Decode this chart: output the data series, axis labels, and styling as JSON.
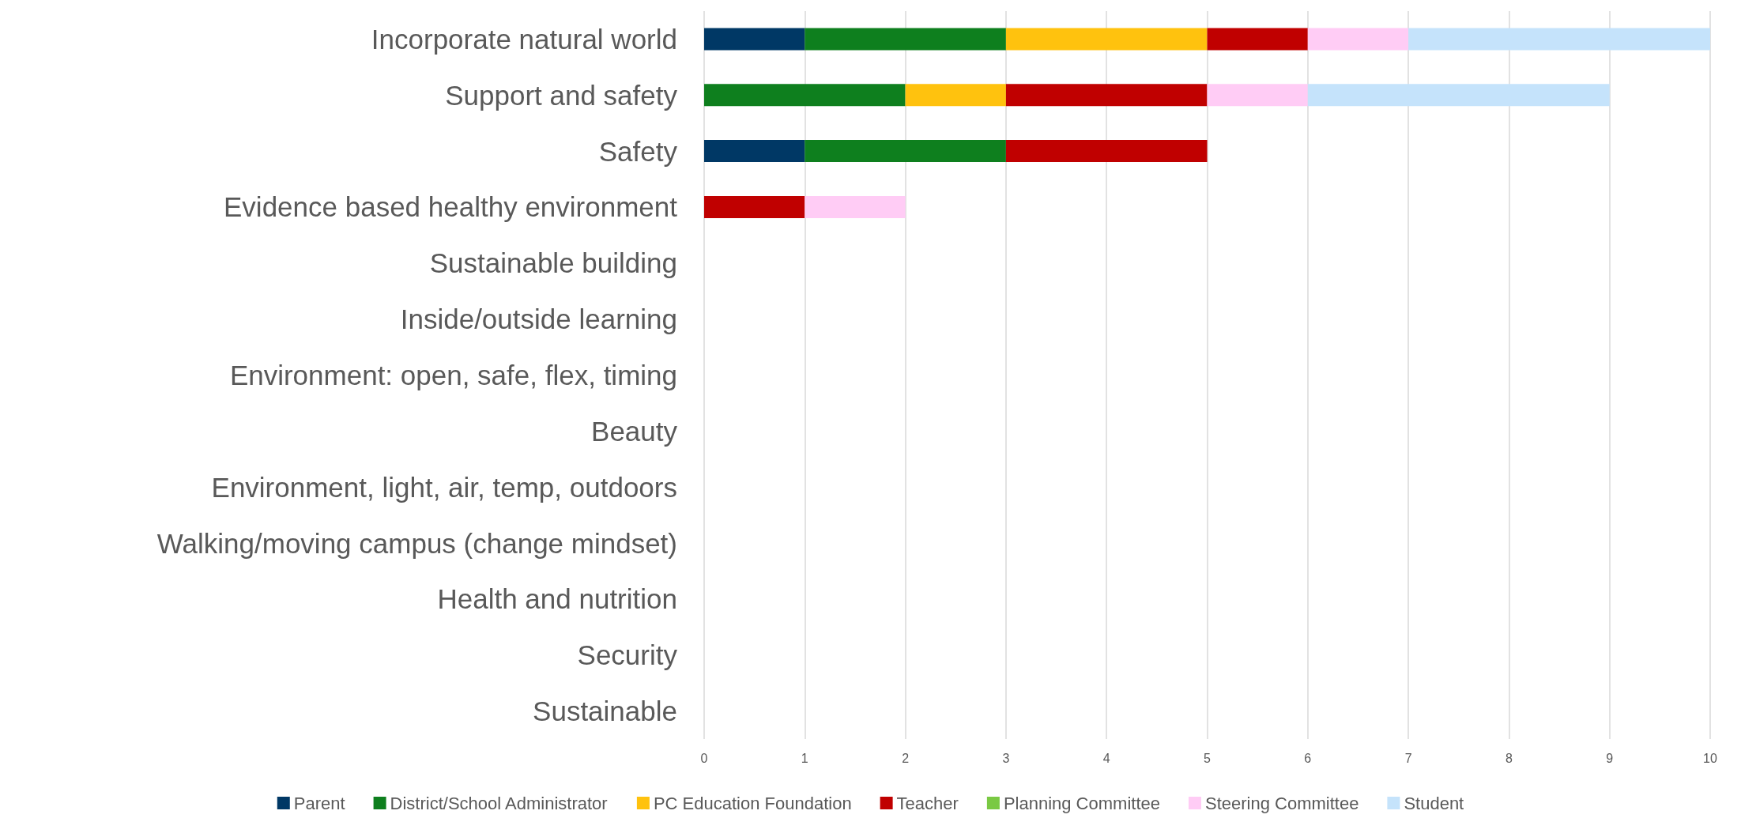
{
  "chart_data": {
    "type": "bar",
    "orientation": "horizontal",
    "stacked": true,
    "categories": [
      "Incorporate natural world",
      "Support and safety",
      "Safety",
      "Evidence based healthy environment",
      "Sustainable building",
      "Inside/outside learning",
      "Environment: open, safe, flex, timing",
      "Beauty",
      "Environment, light, air, temp, outdoors",
      "Walking/moving campus (change mindset)",
      "Health and nutrition",
      "Security",
      "Sustainable"
    ],
    "series": [
      {
        "name": "Parent",
        "color": "#003865",
        "values": [
          1,
          null,
          1,
          null,
          null,
          null,
          null,
          null,
          null,
          null,
          null,
          null,
          null
        ]
      },
      {
        "name": "District/School Administrator",
        "color": "#0e7f1e",
        "values": [
          2,
          2,
          2,
          null,
          null,
          null,
          null,
          null,
          null,
          null,
          null,
          null,
          null
        ]
      },
      {
        "name": "PC Education Foundation",
        "color": "#ffc20e",
        "values": [
          2,
          1,
          null,
          null,
          null,
          null,
          null,
          null,
          null,
          null,
          null,
          null,
          null
        ]
      },
      {
        "name": "Teacher",
        "color": "#c00000",
        "values": [
          1,
          2,
          2,
          1,
          null,
          null,
          null,
          null,
          null,
          null,
          null,
          null,
          null
        ]
      },
      {
        "name": "Planning Committee",
        "color": "#7ac943",
        "values": [
          null,
          null,
          null,
          null,
          null,
          null,
          null,
          null,
          null,
          null,
          null,
          null,
          null
        ]
      },
      {
        "name": "Steering Committee",
        "color": "#ffccf5",
        "values": [
          1,
          1,
          null,
          1,
          null,
          null,
          null,
          null,
          null,
          null,
          null,
          null,
          null
        ]
      },
      {
        "name": "Student",
        "color": "#c5e3fb",
        "values": [
          3,
          3,
          null,
          null,
          null,
          null,
          null,
          null,
          null,
          null,
          null,
          null,
          null
        ]
      }
    ],
    "xlim": [
      0,
      10
    ],
    "xticks": [
      0,
      1,
      2,
      3,
      4,
      5,
      6,
      7,
      8,
      9,
      10
    ],
    "grid": "x",
    "legend": "bottom"
  }
}
